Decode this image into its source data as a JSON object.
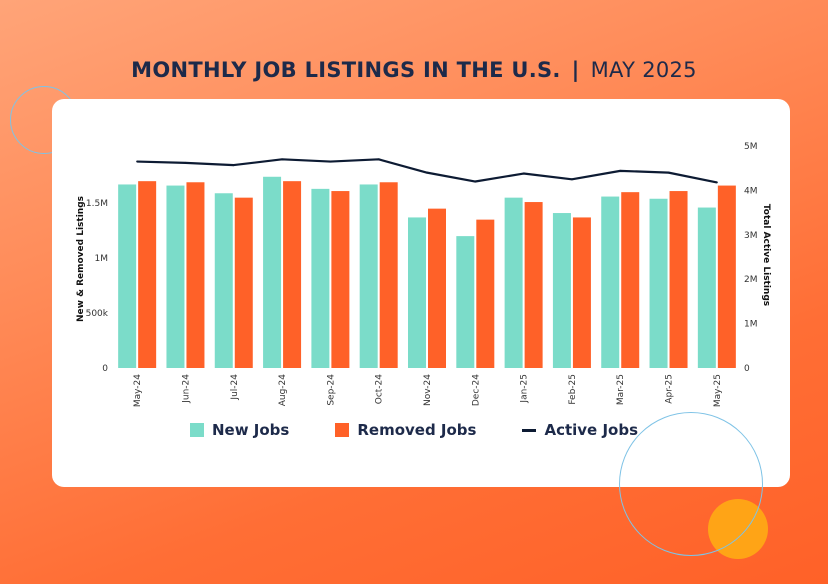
{
  "header": {
    "title_main": "MONTHLY JOB LISTINGS IN THE U.S.",
    "separator": "|",
    "title_sub": "MAY 2025"
  },
  "colors": {
    "new_jobs": "#7bdcc9",
    "removed_jobs": "#ff6128",
    "active_jobs": "#0d1b33"
  },
  "legend": {
    "new_jobs_label": "New Jobs",
    "removed_jobs_label": "Removed Jobs",
    "active_jobs_label": "Active Jobs"
  },
  "chart_data": {
    "type": "bar",
    "categories": [
      "May-24",
      "Jun-24",
      "Jul-24",
      "Aug-24",
      "Sep-24",
      "Oct-24",
      "Nov-24",
      "Dec-24",
      "Jan-25",
      "Feb-25",
      "Mar-25",
      "Apr-25",
      "May-25"
    ],
    "series": [
      {
        "name": "New Jobs",
        "type": "bar",
        "axis": "left",
        "values": [
          1670000,
          1660000,
          1590000,
          1740000,
          1630000,
          1670000,
          1370000,
          1200000,
          1550000,
          1410000,
          1560000,
          1540000,
          1460000
        ]
      },
      {
        "name": "Removed Jobs",
        "type": "bar",
        "axis": "left",
        "values": [
          1700000,
          1690000,
          1550000,
          1700000,
          1610000,
          1690000,
          1450000,
          1350000,
          1510000,
          1370000,
          1600000,
          1610000,
          1660000
        ]
      },
      {
        "name": "Active Jobs",
        "type": "line",
        "axis": "right",
        "values": [
          4650000,
          4620000,
          4570000,
          4700000,
          4650000,
          4700000,
          4400000,
          4200000,
          4380000,
          4250000,
          4440000,
          4400000,
          4180000
        ]
      }
    ],
    "ylabel": "New & Removed Listings",
    "y2label": "Total Active Listings",
    "ylim": [
      0,
      2020000
    ],
    "y2lim": [
      0,
      5000000
    ],
    "yticks": [
      0,
      500000,
      1000000,
      1500000
    ],
    "ytick_labels": [
      "0",
      "500k",
      "1M",
      "1.5M"
    ],
    "y2ticks": [
      0,
      1000000,
      2000000,
      3000000,
      4000000,
      5000000
    ],
    "y2tick_labels": [
      "0",
      "1M",
      "2M",
      "3M",
      "4M",
      "5M"
    ],
    "grid": false,
    "legend_position": "bottom"
  }
}
